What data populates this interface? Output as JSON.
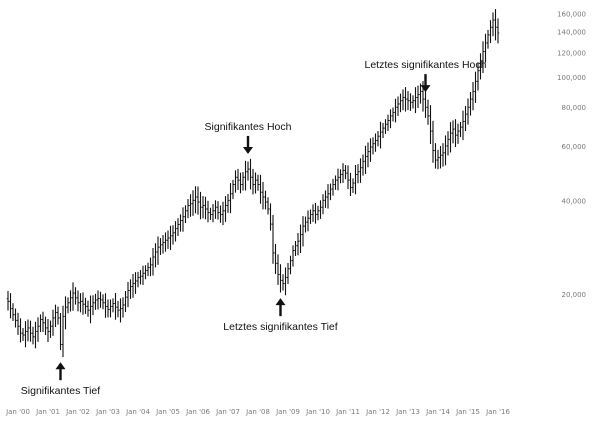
{
  "chart_data": {
    "type": "ohlc",
    "title": "",
    "xlabel": "",
    "ylabel": "",
    "y_scale": "log",
    "ylim": [
      11000,
      170000
    ],
    "grid": false,
    "colors": {
      "bars": "#111111",
      "ticks": "#7a7a7a",
      "annotations": "#111111"
    },
    "x_tick_labels": [
      "Jan '00",
      "Jan '01",
      "Jan '02",
      "Jan '03",
      "Jan '04",
      "Jan '05",
      "Jan '06",
      "Jan '07",
      "Jan '08",
      "Jan '09",
      "Jan '10",
      "Jan '11",
      "Jan '12",
      "Jan '13",
      "Jan '14",
      "Jan '15",
      "Jan '16"
    ],
    "y_ticks": [
      {
        "value": 20000,
        "label": "20,000"
      },
      {
        "value": 40000,
        "label": "40,000"
      },
      {
        "value": 60000,
        "label": "60,000"
      },
      {
        "value": 80000,
        "label": "80,000"
      },
      {
        "value": 100000,
        "label": "100,000"
      },
      {
        "value": 120000,
        "label": "120,000"
      },
      {
        "value": 140000,
        "label": "140,000"
      },
      {
        "value": 160000,
        "label": "160,000"
      }
    ],
    "series": [
      {
        "start": "2000-01",
        "interval": "month",
        "close": [
          19000,
          18000,
          17200,
          16500,
          15800,
          15000,
          14800,
          15200,
          15600,
          15000,
          14600,
          15200,
          15800,
          16600,
          16200,
          15600,
          15200,
          15800,
          16800,
          17500,
          16800,
          13800,
          17000,
          18200,
          18800,
          19500,
          20200,
          19500,
          18800,
          19000,
          18600,
          18300,
          17800,
          18300,
          18800,
          19200,
          19400,
          19200,
          18800,
          18300,
          17900,
          18300,
          18700,
          18200,
          17800,
          18000,
          18500,
          19600,
          20600,
          21200,
          21700,
          22100,
          22700,
          22900,
          23400,
          23900,
          24400,
          24900,
          26400,
          27400,
          28400,
          28900,
          29400,
          29900,
          30400,
          30900,
          31600,
          32600,
          33600,
          34600,
          35600,
          37200,
          38700,
          39200,
          40200,
          41200,
          39700,
          38200,
          38700,
          37700,
          36700,
          36200,
          37200,
          38200,
          36700,
          36200,
          37200,
          38700,
          40200,
          42200,
          45200,
          47700,
          46700,
          45200,
          47700,
          49700,
          50700,
          47700,
          45200,
          46700,
          45200,
          42700,
          41200,
          39700,
          37700,
          33700,
          27200,
          25200,
          23200,
          22200,
          21700,
          22700,
          24200,
          25700,
          27700,
          28700,
          29700,
          31200,
          33200,
          34200,
          35200,
          36200,
          37200,
          36200,
          37200,
          38200,
          40200,
          41200,
          42200,
          43700,
          45200,
          46700,
          47700,
          48700,
          50200,
          49200,
          46700,
          44200,
          45700,
          48700,
          49700,
          51200,
          53700,
          55700,
          57700,
          59700,
          61200,
          62700,
          64700,
          66700,
          68700,
          70700,
          72700,
          75200,
          77200,
          80200,
          82200,
          84200,
          86200,
          85200,
          84200,
          83200,
          84200,
          86200,
          88200,
          90200,
          85200,
          80200,
          75200,
          67200,
          58200,
          54200,
          55200,
          56200,
          57200,
          60200,
          63200,
          66200,
          68200,
          65200,
          67200,
          69200,
          72200,
          76200,
          80200,
          85200,
          90200,
          97200,
          105200,
          113200,
          121200,
          129200,
          137200,
          145200,
          153200,
          145200,
          139200
        ]
      }
    ],
    "annotations": [
      {
        "text": "Signifikantes Tief",
        "date": "2001-10",
        "position": "below"
      },
      {
        "text": "Signifikantes Hoch",
        "date": "2008-01",
        "position": "above"
      },
      {
        "text": "Letztes signifikantes Tief",
        "date": "2009-02",
        "position": "below"
      },
      {
        "text": "Letztes signifikantes Hoch",
        "date": "2013-12",
        "position": "above"
      }
    ]
  }
}
